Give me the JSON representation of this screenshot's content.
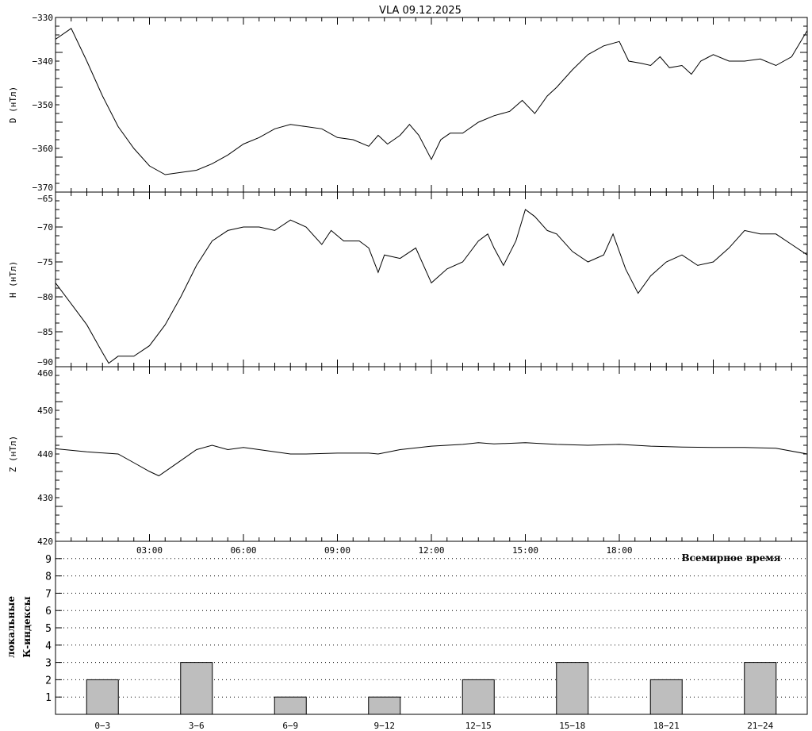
{
  "chart_data": [
    {
      "type": "line",
      "title": "VLA   09.12.2025",
      "ylabel": "D (нТл)",
      "ylim": [
        -370,
        -330
      ],
      "yticks": [
        -330,
        -340,
        -350,
        -360,
        -370
      ],
      "xlim": [
        0,
        24
      ],
      "x": [
        0,
        0.5,
        1,
        1.5,
        2,
        2.5,
        3,
        3.5,
        4,
        4.5,
        5,
        5.5,
        6,
        6.5,
        7,
        7.5,
        8,
        8.5,
        9,
        9.5,
        10,
        10.3,
        10.6,
        11,
        11.3,
        11.6,
        12,
        12.3,
        12.6,
        13,
        13.5,
        14,
        14.5,
        14.9,
        15.3,
        15.7,
        16,
        16.5,
        17,
        17.5,
        18,
        18.3,
        18.7,
        19,
        19.3,
        19.6,
        20,
        20.3,
        20.6,
        21,
        21.5,
        22,
        22.5,
        23,
        23.5,
        24
      ],
      "y": [
        -335,
        -332.5,
        -340,
        -348,
        -355,
        -360,
        -364,
        -366,
        -365.5,
        -365,
        -363.5,
        -361.5,
        -359,
        -357.5,
        -355.5,
        -354.5,
        -355,
        -355.5,
        -357.5,
        -358,
        -359.5,
        -357,
        -359,
        -357,
        -354.5,
        -357,
        -362.5,
        -358,
        -356.5,
        -356.5,
        -354,
        -352.5,
        -351.5,
        -349,
        -352,
        -348,
        -346,
        -342,
        -338.5,
        -336.5,
        -335.5,
        -340,
        -340.5,
        -341,
        -339,
        -341.5,
        -341,
        -343,
        -340,
        -338.5,
        -340,
        -340,
        -339.5,
        -341,
        -339,
        -333
      ]
    },
    {
      "type": "line",
      "ylabel": "H (нТл)",
      "ylim": [
        -90,
        -65
      ],
      "yticks": [
        -65,
        -70,
        -75,
        -80,
        -85,
        -90
      ],
      "xlim": [
        0,
        24
      ],
      "x": [
        0,
        0.5,
        1,
        1.5,
        1.7,
        2,
        2.5,
        3,
        3.5,
        4,
        4.5,
        5,
        5.5,
        6,
        6.5,
        7,
        7.5,
        8,
        8.5,
        8.8,
        9.2,
        9.7,
        10,
        10.3,
        10.5,
        11,
        11.5,
        12,
        12.5,
        13,
        13.5,
        13.8,
        14,
        14.3,
        14.7,
        15,
        15.3,
        15.7,
        16,
        16.5,
        17,
        17.5,
        17.8,
        18.2,
        18.6,
        19,
        19.5,
        20,
        20.5,
        21,
        21.5,
        22,
        22.5,
        23,
        23.5,
        24
      ],
      "y": [
        -78,
        -81,
        -84,
        -88,
        -89.5,
        -88.5,
        -88.5,
        -87,
        -84,
        -80,
        -75.5,
        -72,
        -70.5,
        -70,
        -70,
        -70.5,
        -69,
        -70,
        -72.5,
        -70.5,
        -72,
        -72,
        -73,
        -76.5,
        -74,
        -74.5,
        -73,
        -78,
        -76,
        -75,
        -72,
        -71,
        -73,
        -75.5,
        -72,
        -67.5,
        -68.5,
        -70.5,
        -71,
        -73.5,
        -75,
        -74,
        -71,
        -76,
        -79.5,
        -77,
        -75,
        -74,
        -75.5,
        -75,
        -73,
        -70.5,
        -71,
        -71,
        -72.5,
        -74
      ]
    },
    {
      "type": "line",
      "ylabel": "Z (нТл)",
      "ylim": [
        420,
        460
      ],
      "yticks": [
        460,
        450,
        440,
        430,
        420
      ],
      "xlim": [
        0,
        24
      ],
      "x": [
        0,
        1,
        2,
        2.5,
        3,
        3.3,
        3.6,
        4,
        4.5,
        5,
        5.5,
        6,
        6.5,
        7,
        7.5,
        8,
        9,
        10,
        10.3,
        11,
        12,
        13,
        13.5,
        14,
        15,
        16,
        17,
        18,
        19,
        20,
        21,
        22,
        23,
        24
      ],
      "y": [
        441.2,
        440.5,
        440,
        438,
        436,
        435,
        436.5,
        438.5,
        441,
        442,
        441,
        441.5,
        441,
        440.5,
        440,
        440,
        440.2,
        440.2,
        440,
        441,
        441.8,
        442.2,
        442.6,
        442.3,
        442.6,
        442.2,
        442,
        442.2,
        441.8,
        441.6,
        441.5,
        441.5,
        441.3,
        440
      ],
      "xticklabels": [
        "03:00",
        "06:00",
        "09:00",
        "12:00",
        "15:00",
        "18:00"
      ],
      "xlabel": "Всемирное время"
    },
    {
      "type": "bar",
      "ylabel": [
        "локальные",
        "К-индексы"
      ],
      "ylim": [
        0,
        10
      ],
      "yticks": [
        1,
        2,
        3,
        4,
        5,
        6,
        7,
        8,
        9
      ],
      "grid": true,
      "categories": [
        "0–3",
        "3–6",
        "6–9",
        "9–12",
        "12–15",
        "15–18",
        "18–21",
        "21–24"
      ],
      "values": [
        2,
        3,
        1,
        1,
        2,
        3,
        2,
        3
      ],
      "bar_color": "#bebebe"
    }
  ]
}
